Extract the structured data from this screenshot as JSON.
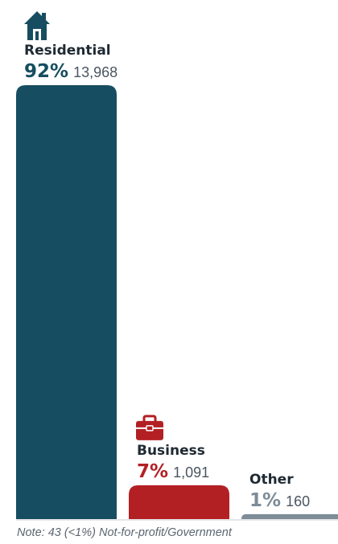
{
  "chart_data": {
    "type": "bar",
    "categories": [
      "Residential",
      "Business",
      "Other"
    ],
    "percent_labels": [
      "92%",
      "7%",
      "1%"
    ],
    "count_labels": [
      "13,968",
      "1,091",
      "160"
    ],
    "values": [
      13968,
      1091,
      160
    ],
    "icons": [
      "house-icon",
      "briefcase-icon",
      ""
    ],
    "colors": [
      "#174d60",
      "#b32024",
      "#7d8c97"
    ],
    "title": "",
    "xlabel": "",
    "ylabel": "",
    "grid": false,
    "legend": "none"
  },
  "note": {
    "prefix": "Note:",
    "text": "43 (<1%) Not-for-profit/Government"
  }
}
